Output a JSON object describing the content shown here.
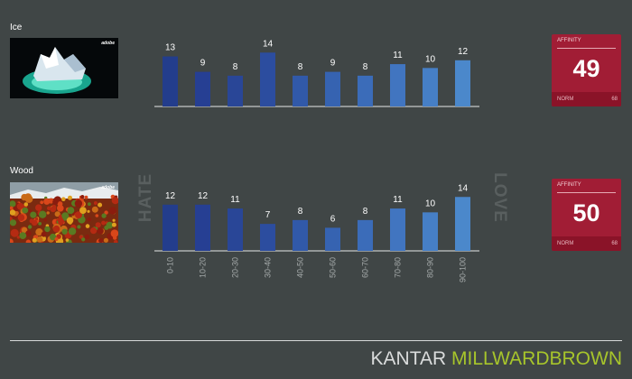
{
  "chart_data": {
    "type": "bar",
    "categories": [
      "0-10",
      "10-20",
      "20-30",
      "30-40",
      "40-50",
      "50-60",
      "60-70",
      "70-80",
      "80-90",
      "90-100"
    ],
    "axis_left_label": "HATE",
    "axis_right_label": "LOVE",
    "series": [
      {
        "row_label": "Ice",
        "values": [
          13,
          9,
          8,
          14,
          8,
          9,
          8,
          11,
          10,
          12
        ]
      },
      {
        "row_label": "Wood",
        "values": [
          12,
          12,
          11,
          7,
          8,
          6,
          8,
          11,
          10,
          14
        ]
      }
    ],
    "ylim": [
      0,
      15
    ],
    "bar_colors": [
      "#233d8c",
      "#263f93",
      "#294697",
      "#2c4d9f",
      "#3159a9",
      "#3663b1",
      "#3b6cb9",
      "#4175c0",
      "#467fc6",
      "#4b88cb"
    ],
    "grid": false
  },
  "rows": [
    {
      "label": "Ice",
      "image_tag": "adobe",
      "affinity": {
        "title": "AFFINITY",
        "value": "49",
        "norm_label": "NORM",
        "norm_value": "68"
      }
    },
    {
      "label": "Wood",
      "image_tag": "adobe",
      "affinity": {
        "title": "AFFINITY",
        "value": "50",
        "norm_label": "NORM",
        "norm_value": "68"
      }
    }
  ],
  "brand": {
    "part1": "KANTAR",
    "part2": "MILLWARDBROWN"
  },
  "colors": {
    "background": "#404646",
    "label_text": "#ffffff",
    "card": "#a11d35",
    "brand_green": "#a7c52b"
  }
}
